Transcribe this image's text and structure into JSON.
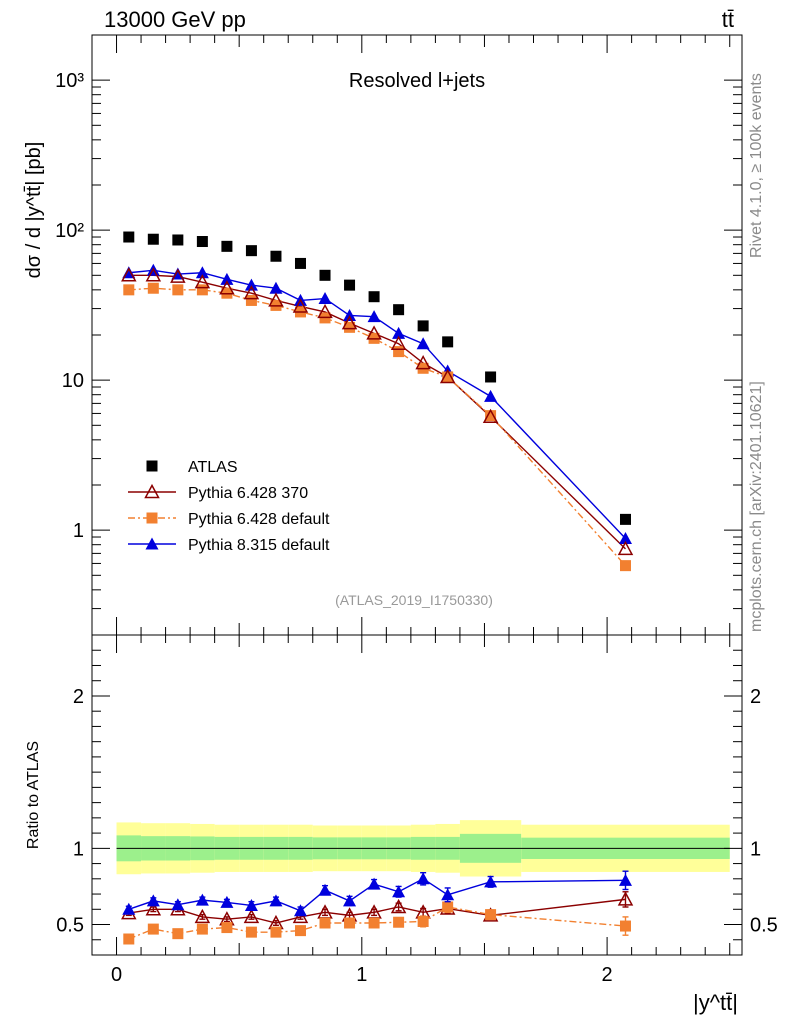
{
  "header": {
    "energy_label": "13000 GeV pp",
    "process_label": "tt̄"
  },
  "side_labels": {
    "rivet": "Rivet 4.1.0, ≥ 100k events",
    "mcplots": "mcplots.cern.ch [arXiv:2401.10621]"
  },
  "chart_data": [
    {
      "type": "scatter",
      "panel": "main",
      "title": "Resolved l+jets",
      "ylabel": "dσ / d |y^tt̄| [pb]",
      "yscale": "log",
      "ylim": [
        0.2,
        2000
      ],
      "xlim": [
        -0.1,
        2.55
      ],
      "analysis_label": "(ATLAS_2019_I1750330)",
      "ytick_labels": [
        "1",
        "10",
        "10²",
        "10³"
      ],
      "series": [
        {
          "name": "ATLAS",
          "color": "#000000",
          "marker": "square",
          "x": [
            0.05,
            0.15,
            0.25,
            0.35,
            0.45,
            0.55,
            0.65,
            0.75,
            0.85,
            0.95,
            1.05,
            1.15,
            1.25,
            1.35,
            1.525,
            2.075
          ],
          "values": [
            90,
            87,
            86,
            84,
            78,
            73,
            67,
            60,
            50,
            43,
            36,
            29.5,
            23,
            18,
            10.5,
            1.18
          ]
        },
        {
          "name": "Pythia 6.428 370",
          "color": "#8b0000",
          "marker": "open-triangle",
          "x": [
            0.05,
            0.15,
            0.25,
            0.35,
            0.45,
            0.55,
            0.65,
            0.75,
            0.85,
            0.95,
            1.05,
            1.15,
            1.25,
            1.35,
            1.525,
            2.075
          ],
          "values": [
            50,
            50,
            49,
            45,
            41,
            38,
            34,
            31,
            28.5,
            24,
            20.5,
            17.5,
            13,
            10.5,
            5.7,
            0.75
          ]
        },
        {
          "name": "Pythia 6.428 default",
          "color": "#f28030",
          "marker": "square",
          "x": [
            0.05,
            0.15,
            0.25,
            0.35,
            0.45,
            0.55,
            0.65,
            0.75,
            0.85,
            0.95,
            1.05,
            1.15,
            1.25,
            1.35,
            1.525,
            2.075
          ],
          "values": [
            40,
            41,
            40,
            40,
            38,
            34,
            31.5,
            28.5,
            26,
            22.5,
            19,
            15.5,
            12,
            10.5,
            5.8,
            0.58
          ]
        },
        {
          "name": "Pythia 8.315 default",
          "color": "#0000dd",
          "marker": "triangle",
          "x": [
            0.05,
            0.15,
            0.25,
            0.35,
            0.45,
            0.55,
            0.65,
            0.75,
            0.85,
            0.95,
            1.05,
            1.15,
            1.25,
            1.35,
            1.525,
            2.075
          ],
          "values": [
            52,
            54,
            51,
            52,
            47,
            43,
            41,
            34,
            35,
            27,
            26.5,
            20.5,
            17.5,
            11.5,
            7.8,
            0.88
          ]
        }
      ]
    },
    {
      "type": "scatter",
      "panel": "ratio",
      "ylabel": "Ratio to ATLAS",
      "xlabel": "|y^tt̄|",
      "ylim": [
        0.3,
        2.4
      ],
      "xlim": [
        -0.1,
        2.55
      ],
      "xtick_labels": [
        "0",
        "1",
        "2"
      ],
      "ytick_labels": [
        "0.5",
        "1",
        "2"
      ],
      "bands": {
        "bin_edges": [
          0,
          0.1,
          0.2,
          0.3,
          0.4,
          0.5,
          0.6,
          0.7,
          0.8,
          0.9,
          1.0,
          1.1,
          1.2,
          1.3,
          1.4,
          1.65,
          2.5
        ],
        "stat_sys_half_width": [
          0.085,
          0.08,
          0.08,
          0.078,
          0.075,
          0.075,
          0.075,
          0.075,
          0.072,
          0.072,
          0.072,
          0.072,
          0.075,
          0.075,
          0.095,
          0.07
        ],
        "total_half_width": [
          0.17,
          0.165,
          0.165,
          0.16,
          0.155,
          0.155,
          0.155,
          0.155,
          0.15,
          0.15,
          0.15,
          0.15,
          0.155,
          0.16,
          0.185,
          0.155
        ],
        "inner_color": "#9cf08c",
        "outer_color": "#ffff99"
      },
      "series": [
        {
          "name": "Pythia 6.428 370",
          "color": "#8b0000",
          "x": [
            0.05,
            0.15,
            0.25,
            0.35,
            0.45,
            0.55,
            0.65,
            0.75,
            0.85,
            0.95,
            1.05,
            1.15,
            1.25,
            1.35,
            1.525,
            2.075
          ],
          "values": [
            0.575,
            0.6,
            0.6,
            0.55,
            0.535,
            0.55,
            0.51,
            0.55,
            0.58,
            0.56,
            0.58,
            0.615,
            0.58,
            0.605,
            0.56,
            0.665
          ],
          "errors": [
            0.015,
            0.015,
            0.015,
            0.015,
            0.015,
            0.015,
            0.015,
            0.015,
            0.02,
            0.02,
            0.02,
            0.025,
            0.025,
            0.03,
            0.025,
            0.05
          ]
        },
        {
          "name": "Pythia 6.428 default",
          "color": "#f28030",
          "x": [
            0.05,
            0.15,
            0.25,
            0.35,
            0.45,
            0.55,
            0.65,
            0.75,
            0.85,
            0.95,
            1.05,
            1.15,
            1.25,
            1.35,
            1.525,
            2.075
          ],
          "values": [
            0.405,
            0.47,
            0.44,
            0.47,
            0.48,
            0.45,
            0.45,
            0.46,
            0.51,
            0.51,
            0.51,
            0.515,
            0.52,
            0.615,
            0.565,
            0.49
          ],
          "errors": [
            0.02,
            0.02,
            0.02,
            0.02,
            0.02,
            0.02,
            0.025,
            0.025,
            0.025,
            0.025,
            0.03,
            0.03,
            0.035,
            0.035,
            0.03,
            0.06
          ]
        },
        {
          "name": "Pythia 8.315 default",
          "color": "#0000dd",
          "x": [
            0.05,
            0.15,
            0.25,
            0.35,
            0.45,
            0.55,
            0.65,
            0.75,
            0.85,
            0.95,
            1.05,
            1.15,
            1.25,
            1.35,
            1.525,
            2.075
          ],
          "values": [
            0.6,
            0.655,
            0.63,
            0.66,
            0.645,
            0.625,
            0.655,
            0.59,
            0.725,
            0.655,
            0.765,
            0.715,
            0.8,
            0.695,
            0.78,
            0.79
          ],
          "errors": [
            0.02,
            0.02,
            0.02,
            0.02,
            0.02,
            0.025,
            0.025,
            0.025,
            0.03,
            0.03,
            0.03,
            0.035,
            0.04,
            0.045,
            0.035,
            0.06
          ]
        }
      ]
    }
  ]
}
